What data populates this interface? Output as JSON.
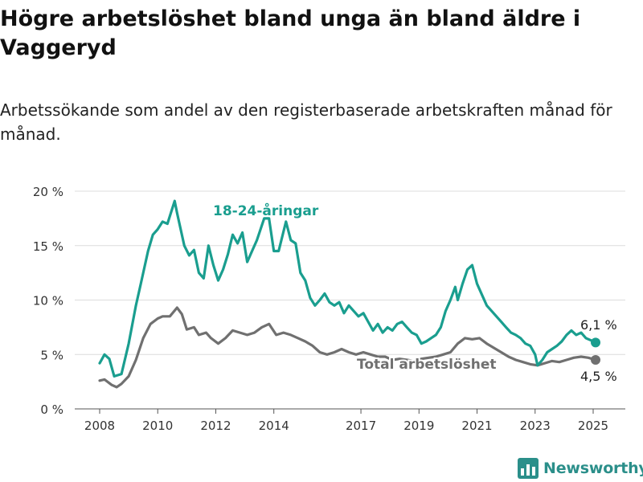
{
  "title": "Högre arbetslöshet bland unga än bland äldre i Vaggeryd",
  "subtitle": "Arbetssökande som andel av den registerbaserade arbetskraften månad för månad.",
  "brand": {
    "name": "Newsworthy",
    "color": "#2b8f8a",
    "icon": "bar-chart-logo-icon"
  },
  "chart_data": {
    "type": "line",
    "title": "Högre arbetslöshet bland unga än bland äldre i Vaggeryd",
    "subtitle": "Arbetssökande som andel av den registerbaserade arbetskraften månad för månad.",
    "x_ticks": [
      "2008",
      "2010",
      "2012",
      "2014",
      "2017",
      "2019",
      "2021",
      "2023",
      "2025"
    ],
    "y_ticks": [
      "0 %",
      "5 %",
      "10 %",
      "15 %",
      "20 %"
    ],
    "ylim": [
      0,
      20
    ],
    "grid": true,
    "series": [
      {
        "name": "18-24-åringar",
        "color": "#1a9e8f",
        "end_label": "6,1 %",
        "points": [
          [
            "2008-01",
            4.2
          ],
          [
            "2008-03",
            5.0
          ],
          [
            "2008-05",
            4.6
          ],
          [
            "2008-07",
            3.0
          ],
          [
            "2008-10",
            3.2
          ],
          [
            "2009-01",
            6.0
          ],
          [
            "2009-04",
            9.5
          ],
          [
            "2009-06",
            11.5
          ],
          [
            "2009-09",
            14.5
          ],
          [
            "2009-11",
            16.0
          ],
          [
            "2010-01",
            16.5
          ],
          [
            "2010-03",
            17.2
          ],
          [
            "2010-05",
            17.0
          ],
          [
            "2010-08",
            19.1
          ],
          [
            "2010-09",
            18.0
          ],
          [
            "2010-12",
            15.0
          ],
          [
            "2011-02",
            14.1
          ],
          [
            "2011-04",
            14.6
          ],
          [
            "2011-06",
            12.5
          ],
          [
            "2011-08",
            12.0
          ],
          [
            "2011-10",
            15.0
          ],
          [
            "2011-12",
            13.2
          ],
          [
            "2012-02",
            11.8
          ],
          [
            "2012-04",
            12.8
          ],
          [
            "2012-06",
            14.2
          ],
          [
            "2012-08",
            16.0
          ],
          [
            "2012-10",
            15.2
          ],
          [
            "2012-12",
            16.2
          ],
          [
            "2013-02",
            13.5
          ],
          [
            "2013-04",
            14.5
          ],
          [
            "2013-06",
            15.5
          ],
          [
            "2013-09",
            17.5
          ],
          [
            "2013-11",
            17.5
          ],
          [
            "2014-01",
            14.5
          ],
          [
            "2014-03",
            14.5
          ],
          [
            "2014-06",
            17.2
          ],
          [
            "2014-08",
            15.5
          ],
          [
            "2014-10",
            15.2
          ],
          [
            "2014-12",
            12.5
          ],
          [
            "2015-02",
            11.8
          ],
          [
            "2015-04",
            10.2
          ],
          [
            "2015-06",
            9.5
          ],
          [
            "2015-08",
            10.0
          ],
          [
            "2015-10",
            10.6
          ],
          [
            "2015-12",
            9.8
          ],
          [
            "2016-02",
            9.5
          ],
          [
            "2016-04",
            9.8
          ],
          [
            "2016-06",
            8.8
          ],
          [
            "2016-08",
            9.5
          ],
          [
            "2016-10",
            9.0
          ],
          [
            "2016-12",
            8.5
          ],
          [
            "2017-02",
            8.8
          ],
          [
            "2017-04",
            8.0
          ],
          [
            "2017-06",
            7.2
          ],
          [
            "2017-08",
            7.8
          ],
          [
            "2017-10",
            7.0
          ],
          [
            "2017-12",
            7.5
          ],
          [
            "2018-02",
            7.2
          ],
          [
            "2018-04",
            7.8
          ],
          [
            "2018-06",
            8.0
          ],
          [
            "2018-08",
            7.5
          ],
          [
            "2018-10",
            7.0
          ],
          [
            "2018-12",
            6.8
          ],
          [
            "2019-02",
            6.0
          ],
          [
            "2019-04",
            6.2
          ],
          [
            "2019-06",
            6.5
          ],
          [
            "2019-08",
            6.8
          ],
          [
            "2019-10",
            7.5
          ],
          [
            "2019-12",
            9.0
          ],
          [
            "2020-02",
            10.0
          ],
          [
            "2020-04",
            11.2
          ],
          [
            "2020-05",
            10.0
          ],
          [
            "2020-07",
            11.5
          ],
          [
            "2020-09",
            12.8
          ],
          [
            "2020-11",
            13.2
          ],
          [
            "2021-01",
            11.5
          ],
          [
            "2021-03",
            10.5
          ],
          [
            "2021-05",
            9.5
          ],
          [
            "2021-07",
            9.0
          ],
          [
            "2021-09",
            8.5
          ],
          [
            "2021-11",
            8.0
          ],
          [
            "2022-01",
            7.5
          ],
          [
            "2022-03",
            7.0
          ],
          [
            "2022-05",
            6.8
          ],
          [
            "2022-07",
            6.5
          ],
          [
            "2022-09",
            6.0
          ],
          [
            "2022-11",
            5.8
          ],
          [
            "2023-01",
            5.0
          ],
          [
            "2023-02",
            4.0
          ],
          [
            "2023-04",
            4.5
          ],
          [
            "2023-06",
            5.2
          ],
          [
            "2023-08",
            5.5
          ],
          [
            "2023-10",
            5.8
          ],
          [
            "2023-12",
            6.2
          ],
          [
            "2024-02",
            6.8
          ],
          [
            "2024-04",
            7.2
          ],
          [
            "2024-06",
            6.8
          ],
          [
            "2024-08",
            7.0
          ],
          [
            "2024-10",
            6.5
          ],
          [
            "2024-12",
            6.3
          ],
          [
            "2025-02",
            6.1
          ]
        ]
      },
      {
        "name": "Total arbetslöshet",
        "color": "#707070",
        "end_label": "4,5 %",
        "points": [
          [
            "2008-01",
            2.6
          ],
          [
            "2008-03",
            2.7
          ],
          [
            "2008-06",
            2.2
          ],
          [
            "2008-08",
            2.0
          ],
          [
            "2008-10",
            2.3
          ],
          [
            "2009-01",
            3.0
          ],
          [
            "2009-04",
            4.5
          ],
          [
            "2009-07",
            6.5
          ],
          [
            "2009-10",
            7.8
          ],
          [
            "2010-01",
            8.3
          ],
          [
            "2010-03",
            8.5
          ],
          [
            "2010-06",
            8.5
          ],
          [
            "2010-09",
            9.3
          ],
          [
            "2010-11",
            8.7
          ],
          [
            "2011-01",
            7.3
          ],
          [
            "2011-04",
            7.5
          ],
          [
            "2011-06",
            6.8
          ],
          [
            "2011-09",
            7.0
          ],
          [
            "2011-11",
            6.5
          ],
          [
            "2012-02",
            6.0
          ],
          [
            "2012-05",
            6.5
          ],
          [
            "2012-08",
            7.2
          ],
          [
            "2012-11",
            7.0
          ],
          [
            "2013-02",
            6.8
          ],
          [
            "2013-05",
            7.0
          ],
          [
            "2013-08",
            7.5
          ],
          [
            "2013-11",
            7.8
          ],
          [
            "2014-02",
            6.8
          ],
          [
            "2014-05",
            7.0
          ],
          [
            "2014-08",
            6.8
          ],
          [
            "2014-11",
            6.5
          ],
          [
            "2015-02",
            6.2
          ],
          [
            "2015-05",
            5.8
          ],
          [
            "2015-08",
            5.2
          ],
          [
            "2015-11",
            5.0
          ],
          [
            "2016-02",
            5.2
          ],
          [
            "2016-05",
            5.5
          ],
          [
            "2016-08",
            5.2
          ],
          [
            "2016-11",
            5.0
          ],
          [
            "2017-02",
            5.2
          ],
          [
            "2017-05",
            5.0
          ],
          [
            "2017-08",
            4.8
          ],
          [
            "2017-11",
            4.8
          ],
          [
            "2018-02",
            4.5
          ],
          [
            "2018-05",
            4.6
          ],
          [
            "2018-08",
            4.5
          ],
          [
            "2018-11",
            4.4
          ],
          [
            "2019-02",
            4.6
          ],
          [
            "2019-05",
            4.7
          ],
          [
            "2019-08",
            4.8
          ],
          [
            "2019-11",
            5.0
          ],
          [
            "2020-02",
            5.2
          ],
          [
            "2020-05",
            6.0
          ],
          [
            "2020-08",
            6.5
          ],
          [
            "2020-11",
            6.4
          ],
          [
            "2021-02",
            6.5
          ],
          [
            "2021-05",
            6.0
          ],
          [
            "2021-08",
            5.6
          ],
          [
            "2021-11",
            5.2
          ],
          [
            "2022-02",
            4.8
          ],
          [
            "2022-05",
            4.5
          ],
          [
            "2022-08",
            4.3
          ],
          [
            "2022-11",
            4.1
          ],
          [
            "2023-02",
            4.0
          ],
          [
            "2023-05",
            4.2
          ],
          [
            "2023-08",
            4.4
          ],
          [
            "2023-11",
            4.3
          ],
          [
            "2024-02",
            4.5
          ],
          [
            "2024-05",
            4.7
          ],
          [
            "2024-08",
            4.8
          ],
          [
            "2024-11",
            4.7
          ],
          [
            "2025-02",
            4.5
          ]
        ]
      }
    ]
  }
}
